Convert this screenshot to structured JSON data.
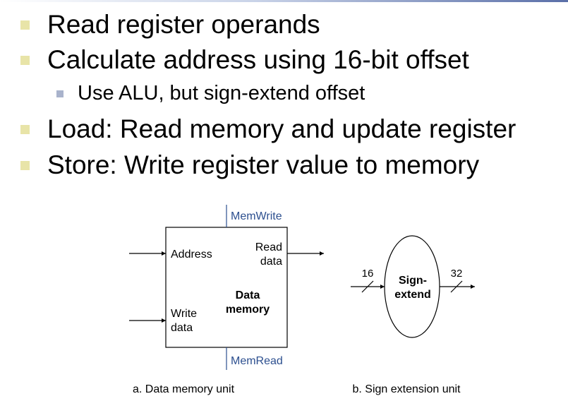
{
  "bullets": [
    {
      "level": 1,
      "text": "Read register operands"
    },
    {
      "level": 1,
      "text": "Calculate address using 16-bit offset"
    },
    {
      "level": 2,
      "text": "Use ALU, but sign-extend offset"
    },
    {
      "level": 1,
      "text": "Load: Read memory and update register"
    },
    {
      "level": 1,
      "text": "Store: Write register value to memory"
    }
  ],
  "data_memory": {
    "mem_write": "MemWrite",
    "mem_read": "MemRead",
    "address": "Address",
    "read_data_1": "Read",
    "read_data_2": "data",
    "write_data_1": "Write",
    "write_data_2": "data",
    "title_1": "Data",
    "title_2": "memory",
    "caption": "a. Data memory unit"
  },
  "sign_extend": {
    "input_width": "16",
    "output_width": "32",
    "label_1": "Sign-",
    "label_2": "extend",
    "caption": "b. Sign extension unit"
  },
  "colors": {
    "control_signal": "#2c4f8f",
    "bullet_l1": "#e8e4a8",
    "bullet_l2": "#a9b3cc"
  }
}
